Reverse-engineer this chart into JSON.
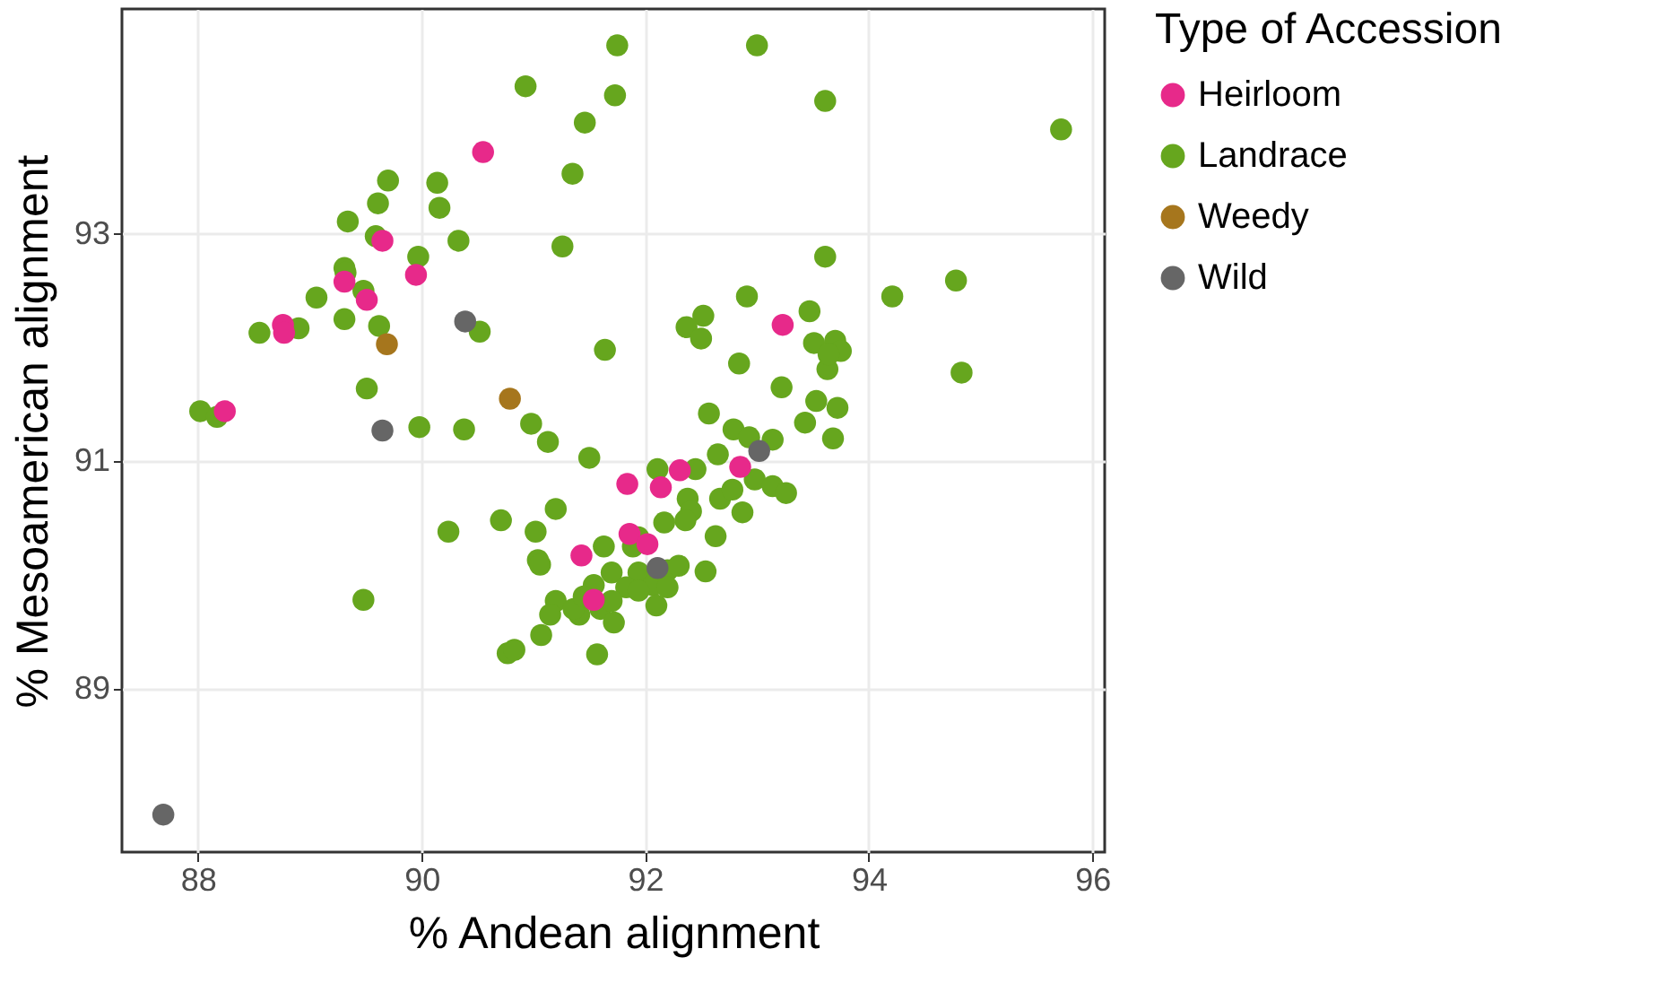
{
  "chart_data": {
    "type": "scatter",
    "xlabel": "% Andean alignment",
    "ylabel": "% Mesoamerican alignment",
    "legend_title": "Type of Accession",
    "legend": "right",
    "grid": true,
    "marker": "circle",
    "xlim": [
      87.32,
      96.11
    ],
    "ylim": [
      87.56,
      94.98
    ],
    "xticks": [
      88,
      90,
      92,
      94,
      96
    ],
    "yticks": [
      89,
      91,
      93
    ],
    "series": [
      {
        "name": "Heirloom",
        "color": "#e7298a",
        "x": [
          90.55,
          89.65,
          89.95,
          89.31,
          89.51,
          88.76,
          88.77,
          88.24,
          93.23,
          91.84,
          92.14,
          92.31,
          91.43,
          91.86,
          92.02,
          92.85,
          91.54
        ],
        "values": [
          93.72,
          92.94,
          92.64,
          92.58,
          92.42,
          92.2,
          92.13,
          91.44,
          92.2,
          90.8,
          90.77,
          90.92,
          90.17,
          90.36,
          90.27,
          90.95,
          89.78
        ]
      },
      {
        "name": "Landrace",
        "color": "#66a61e",
        "x": [
          91.75,
          93.0,
          90.93,
          91.73,
          91.46,
          93.61,
          95.72,
          91.35,
          91.26,
          89.7,
          90.14,
          90.16,
          89.61,
          89.34,
          90.33,
          89.59,
          89.31,
          89.32,
          89.97,
          89.06,
          89.48,
          89.31,
          89.62,
          88.9,
          88.55,
          90.52,
          88.02,
          88.17,
          89.51,
          89.98,
          90.38,
          89.48,
          91.64,
          90.98,
          91.13,
          91.5,
          90.71,
          90.24,
          91.02,
          91.2,
          91.04,
          90.77,
          90.83,
          91.57,
          92.91,
          92.52,
          92.37,
          92.5,
          93.47,
          93.61,
          94.21,
          94.78,
          94.83,
          93.51,
          93.7,
          93.75,
          93.63,
          93.64,
          92.84,
          93.22,
          92.57,
          93.53,
          93.72,
          93.43,
          93.68,
          92.79,
          92.93,
          93.14,
          92.65,
          92.11,
          92.45,
          92.98,
          93.14,
          93.26,
          92.67,
          92.78,
          92.87,
          92.38,
          92.41,
          92.17,
          92.36,
          92.63,
          92.54,
          91.94,
          91.63,
          91.89,
          91.06,
          91.7,
          91.54,
          91.94,
          92.2,
          92.3,
          92.07,
          92.2,
          91.83,
          91.2,
          91.15,
          91.41,
          91.36,
          91.6,
          91.72,
          91.7,
          92.1,
          91.94,
          91.07,
          91.45
        ],
        "values": [
          94.66,
          94.66,
          94.3,
          94.22,
          93.98,
          94.17,
          93.92,
          93.53,
          92.89,
          93.47,
          93.45,
          93.23,
          93.27,
          93.11,
          92.94,
          92.98,
          92.7,
          92.66,
          92.8,
          92.44,
          92.5,
          92.25,
          92.19,
          92.17,
          92.13,
          92.14,
          91.44,
          91.39,
          91.64,
          91.3,
          91.28,
          89.78,
          91.98,
          91.33,
          91.17,
          91.03,
          90.48,
          90.38,
          90.38,
          90.58,
          90.13,
          89.31,
          89.34,
          89.3,
          92.45,
          92.28,
          92.18,
          92.08,
          92.32,
          92.8,
          92.45,
          92.59,
          91.78,
          92.04,
          92.06,
          91.97,
          91.81,
          91.94,
          91.86,
          91.65,
          91.42,
          91.53,
          91.47,
          91.34,
          91.2,
          91.28,
          91.21,
          91.19,
          91.06,
          90.93,
          90.93,
          90.84,
          90.78,
          90.72,
          90.67,
          90.75,
          90.55,
          90.67,
          90.56,
          90.46,
          90.48,
          90.34,
          90.03,
          90.33,
          90.25,
          90.25,
          90.09,
          90.02,
          89.91,
          90.02,
          90.04,
          90.08,
          89.91,
          89.89,
          89.89,
          89.77,
          89.65,
          89.65,
          89.7,
          89.7,
          89.58,
          89.77,
          89.73,
          89.86,
          89.47,
          89.81
        ]
      },
      {
        "name": "Weedy",
        "color": "#a6761d",
        "x": [
          89.69,
          90.79
        ],
        "values": [
          92.03,
          91.55
        ]
      },
      {
        "name": "Wild",
        "color": "#666666",
        "x": [
          87.69,
          90.39,
          89.65,
          92.11,
          93.02
        ],
        "values": [
          87.89,
          92.23,
          91.27,
          90.06,
          91.09
        ]
      }
    ]
  }
}
